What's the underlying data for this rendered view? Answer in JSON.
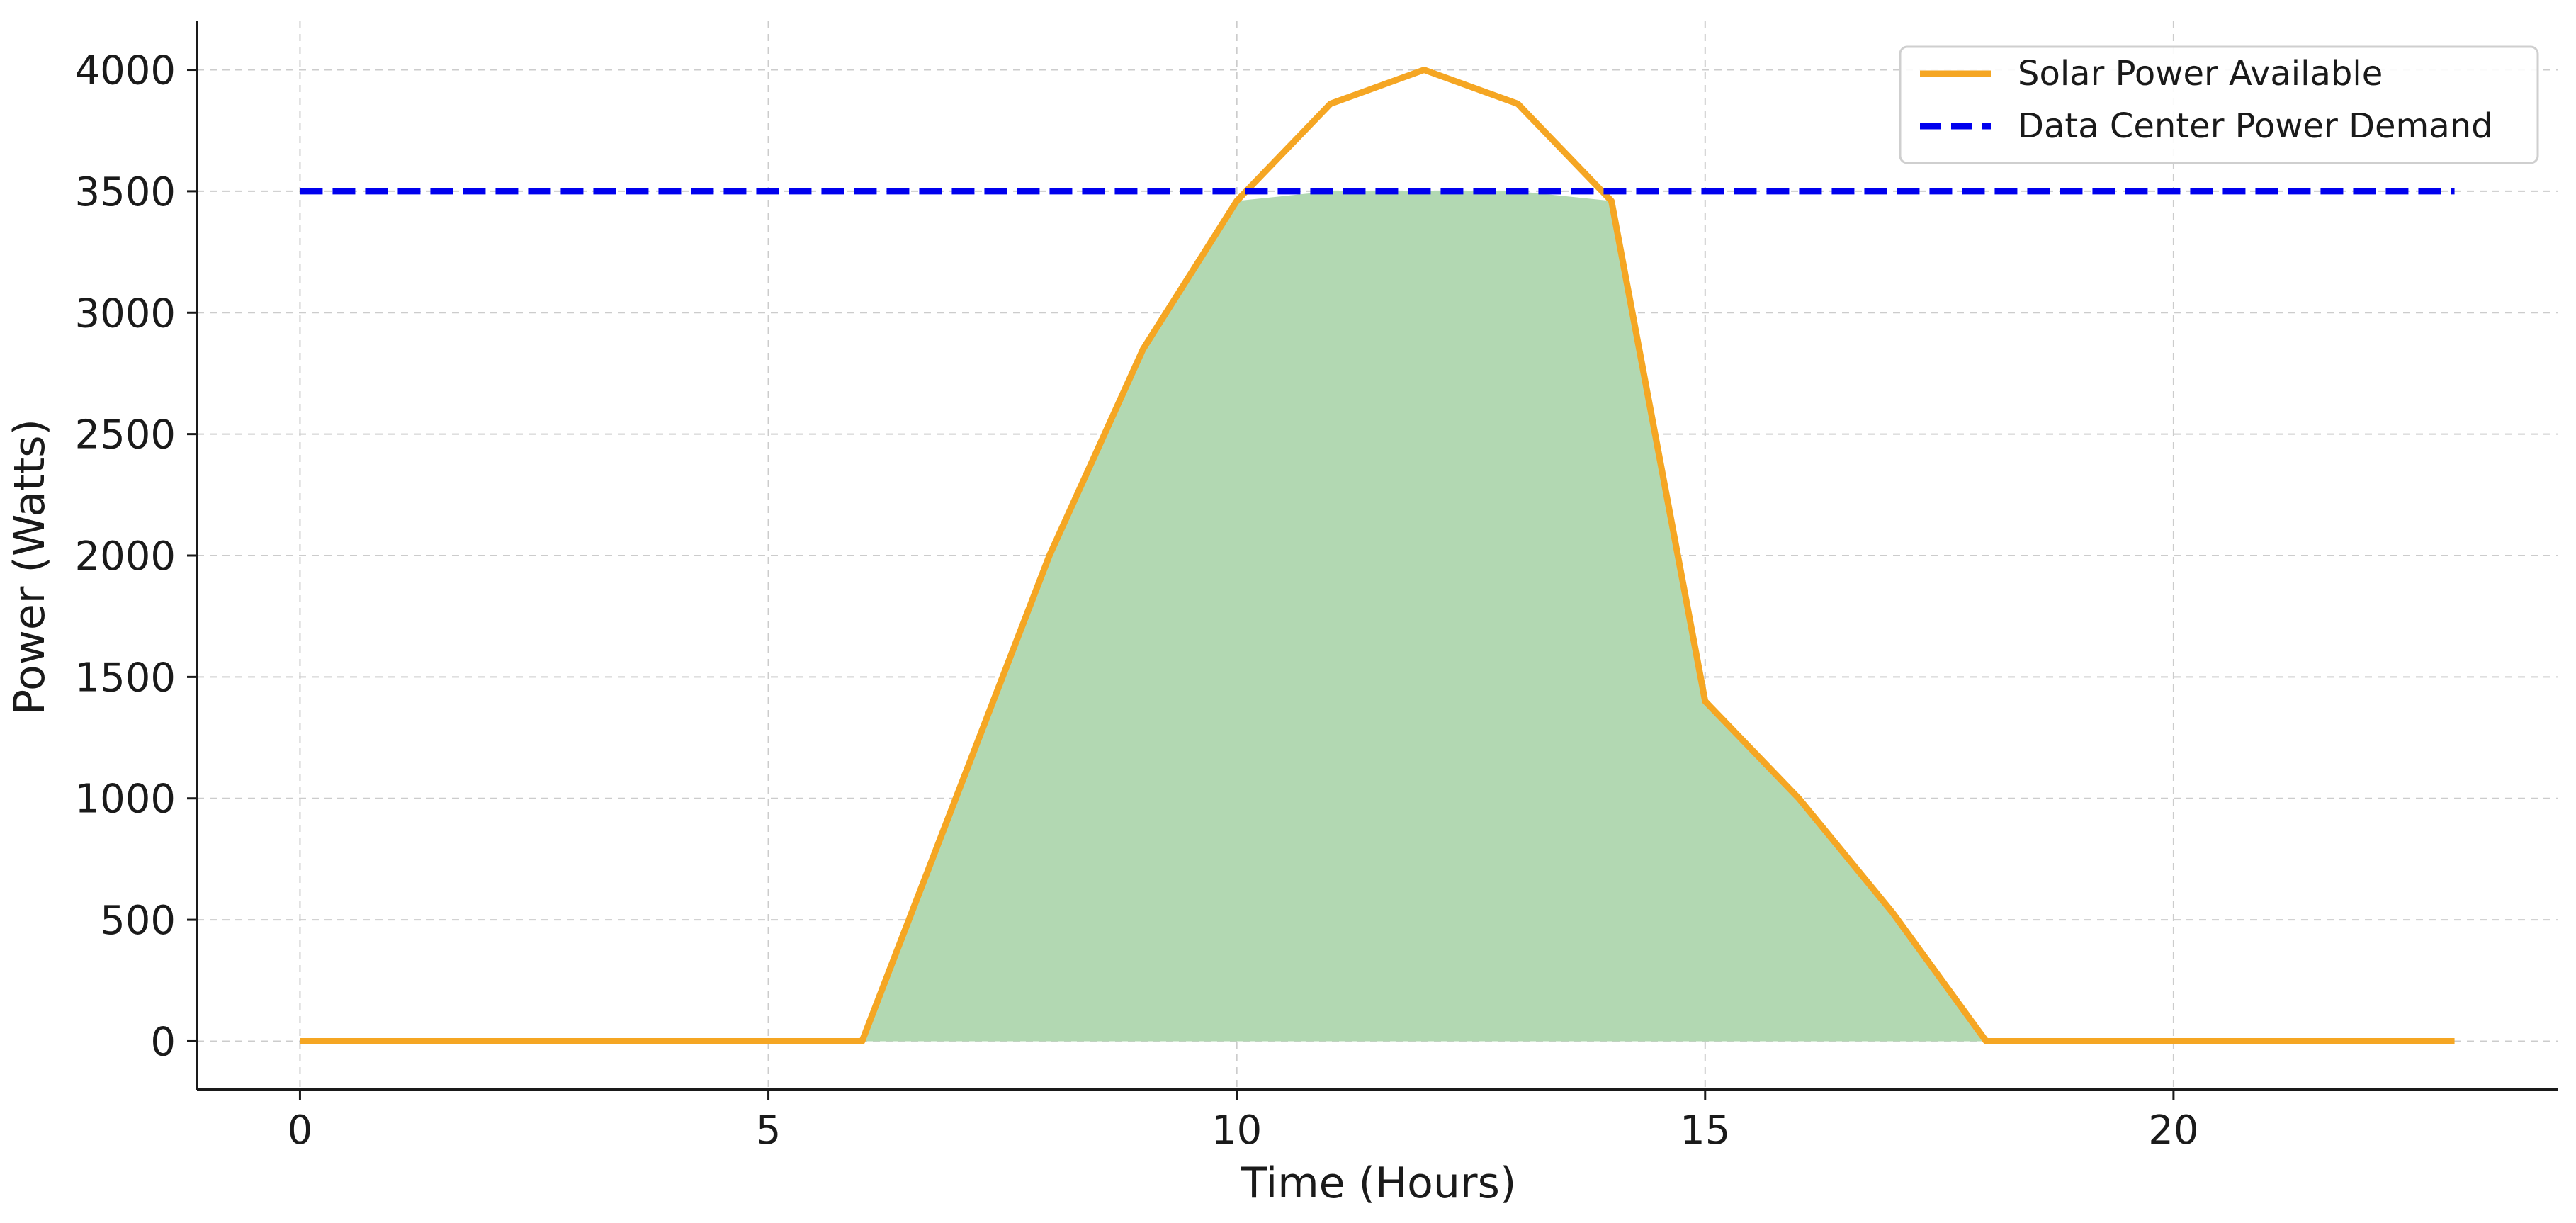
{
  "chart_data": {
    "type": "line",
    "title": "",
    "xlabel": "Time (Hours)",
    "ylabel": "Power (Watts)",
    "xlim": [
      -1.1,
      24.1
    ],
    "ylim": [
      -200,
      4200
    ],
    "xticks": [
      0,
      5,
      10,
      15,
      20
    ],
    "yticks": [
      0,
      500,
      1000,
      1500,
      2000,
      2500,
      3000,
      3500,
      4000
    ],
    "grid": true,
    "legend_position": "top-right",
    "x": [
      0,
      1,
      2,
      3,
      4,
      5,
      6,
      7,
      8,
      9,
      10,
      11,
      12,
      13,
      14,
      15,
      16,
      17,
      18,
      19,
      20,
      21,
      22,
      23
    ],
    "series": [
      {
        "name": "Solar Power Available",
        "style": "solid",
        "color": "#f5a623",
        "values": [
          0,
          0,
          0,
          0,
          0,
          0,
          0,
          1000,
          2000,
          2850,
          3460,
          3860,
          4000,
          3860,
          3460,
          1400,
          1000,
          530,
          0,
          0,
          0,
          0,
          0,
          0
        ]
      },
      {
        "name": "Data Center Power Demand",
        "style": "dashed",
        "color": "#0000ee",
        "values": [
          3500,
          3500,
          3500,
          3500,
          3500,
          3500,
          3500,
          3500,
          3500,
          3500,
          3500,
          3500,
          3500,
          3500,
          3500,
          3500,
          3500,
          3500,
          3500,
          3500,
          3500,
          3500,
          3500,
          3500
        ]
      }
    ],
    "fill": {
      "description": "min(solar, demand)",
      "color": "#b2d8b2"
    }
  }
}
